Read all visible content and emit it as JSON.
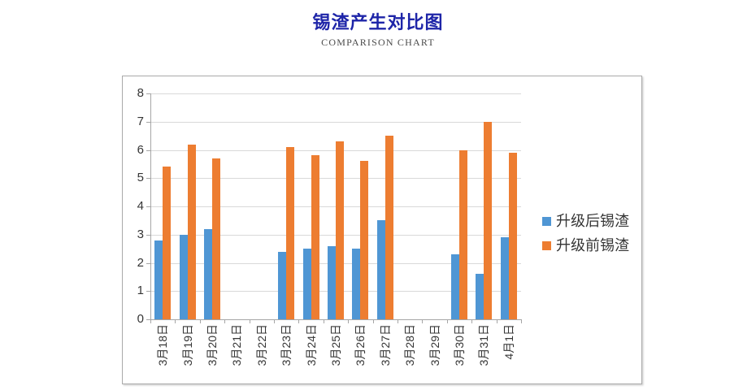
{
  "header": {
    "title": "锡渣产生对比图",
    "subtitle": "COMPARISON CHART"
  },
  "chart_data": {
    "type": "bar",
    "title": "锡渣产生对比图",
    "subtitle": "COMPARISON CHART",
    "categories": [
      "3月18日",
      "3月19日",
      "3月20日",
      "3月21日",
      "3月22日",
      "3月23日",
      "3月24日",
      "3月25日",
      "3月26日",
      "3月27日",
      "3月28日",
      "3月29日",
      "3月30日",
      "3月31日",
      "4月1日"
    ],
    "series": [
      {
        "name": "升级后锡渣",
        "color": "#4f96d4",
        "values": [
          2.8,
          3.0,
          3.2,
          null,
          null,
          2.4,
          2.5,
          2.6,
          2.5,
          3.5,
          null,
          null,
          2.3,
          1.6,
          2.9
        ]
      },
      {
        "name": "升级前锡渣",
        "color": "#ed7d31",
        "values": [
          5.4,
          6.2,
          5.7,
          null,
          null,
          6.1,
          5.8,
          6.3,
          5.6,
          6.5,
          null,
          null,
          6.0,
          7.0,
          5.9
        ]
      }
    ],
    "xlabel": "",
    "ylabel": "",
    "ylim": [
      0,
      8
    ],
    "ytick_step": 1,
    "grid": true,
    "legend_position": "right"
  },
  "colors": {
    "title": "#1e25a8",
    "subtitle": "#4a4a4a",
    "gridline": "#d9d9d9",
    "axis": "#a6a6a6",
    "frame_border": "#aaaaaa",
    "label": "#353535"
  }
}
